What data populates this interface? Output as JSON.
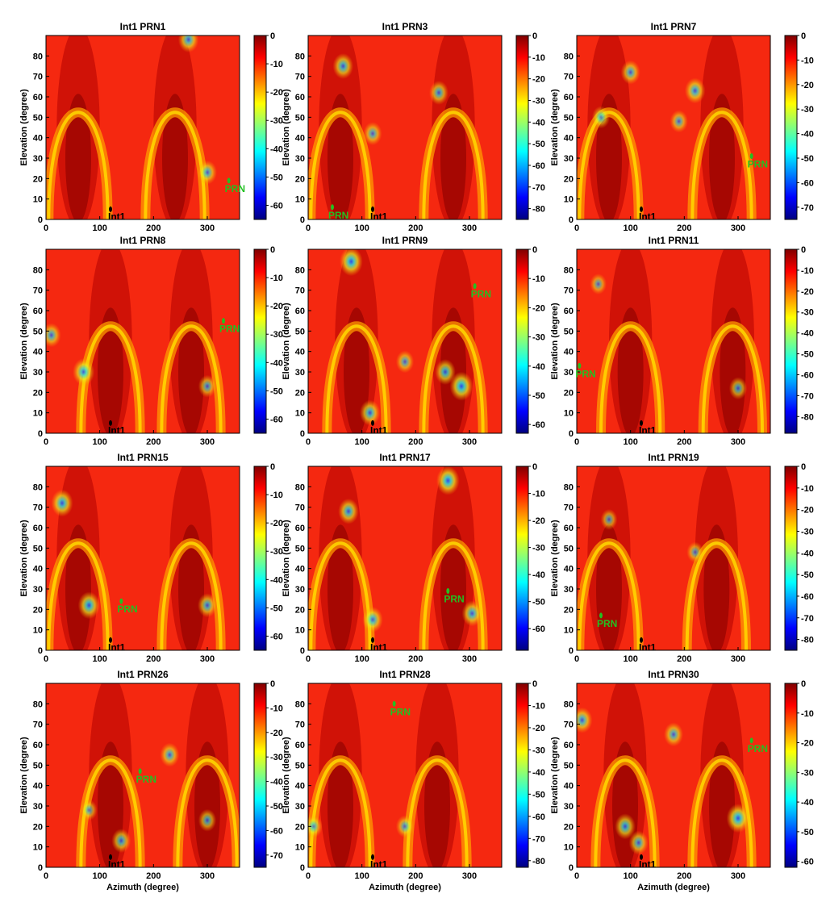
{
  "chart_data": [
    {
      "type": "heatmap",
      "title_left": "Int1",
      "title_right": "PRN1",
      "xlim": [
        0,
        360
      ],
      "ylim": [
        0,
        90
      ],
      "xticks": [
        0,
        100,
        200,
        300
      ],
      "yticks": [
        0,
        10,
        20,
        30,
        40,
        50,
        60,
        70,
        80
      ],
      "colorbar": {
        "min": -65,
        "max": 0,
        "ticks": [
          0,
          -10,
          -20,
          -30,
          -40,
          -50,
          -60
        ]
      },
      "arch_centers": [
        60,
        240
      ],
      "nulls": [
        {
          "x": 300,
          "y": 23,
          "depth": 0.5
        },
        {
          "x": 265,
          "y": 88,
          "depth": 0.6
        }
      ],
      "int_marker": {
        "label": "Int1",
        "x": 120,
        "y": 5
      },
      "prn_marker": {
        "label": "PRN",
        "x": 340,
        "y": 19
      }
    },
    {
      "type": "heatmap",
      "title_left": "Int1",
      "title_right": "PRN3",
      "xlim": [
        0,
        360
      ],
      "ylim": [
        0,
        90
      ],
      "xticks": [
        0,
        100,
        200,
        300
      ],
      "yticks": [
        0,
        10,
        20,
        30,
        40,
        50,
        60,
        70,
        80
      ],
      "colorbar": {
        "min": -85,
        "max": 0,
        "ticks": [
          0,
          -10,
          -20,
          -30,
          -40,
          -50,
          -60,
          -70,
          -80
        ]
      },
      "arch_centers": [
        60,
        270
      ],
      "nulls": [
        {
          "x": 65,
          "y": 75,
          "depth": 0.6
        },
        {
          "x": 120,
          "y": 42,
          "depth": 0.45
        },
        {
          "x": 243,
          "y": 62,
          "depth": 0.5
        }
      ],
      "int_marker": {
        "label": "Int1",
        "x": 120,
        "y": 5
      },
      "prn_marker": {
        "label": "PRN",
        "x": 45,
        "y": 6
      }
    },
    {
      "type": "heatmap",
      "title_left": "Int1",
      "title_right": "PRN7",
      "xlim": [
        0,
        360
      ],
      "ylim": [
        0,
        90
      ],
      "xticks": [
        0,
        100,
        200,
        300
      ],
      "yticks": [
        0,
        10,
        20,
        30,
        40,
        50,
        60,
        70,
        80
      ],
      "colorbar": {
        "min": -75,
        "max": 0,
        "ticks": [
          0,
          -10,
          -20,
          -30,
          -40,
          -50,
          -60,
          -70
        ]
      },
      "arch_centers": [
        60,
        270
      ],
      "nulls": [
        {
          "x": 100,
          "y": 72,
          "depth": 0.5
        },
        {
          "x": 220,
          "y": 63,
          "depth": 0.6
        },
        {
          "x": 45,
          "y": 50,
          "depth": 0.4
        },
        {
          "x": 190,
          "y": 48,
          "depth": 0.4
        }
      ],
      "int_marker": {
        "label": "Int1",
        "x": 120,
        "y": 5
      },
      "prn_marker": {
        "label": "PRN",
        "x": 325,
        "y": 31
      }
    },
    {
      "type": "heatmap",
      "title_left": "Int1",
      "title_right": "PRN8",
      "xlim": [
        0,
        360
      ],
      "ylim": [
        0,
        90
      ],
      "xticks": [
        0,
        100,
        200,
        300
      ],
      "yticks": [
        0,
        10,
        20,
        30,
        40,
        50,
        60,
        70,
        80
      ],
      "colorbar": {
        "min": -65,
        "max": 0,
        "ticks": [
          0,
          -10,
          -20,
          -30,
          -40,
          -50,
          -60
        ]
      },
      "arch_centers": [
        120,
        270
      ],
      "nulls": [
        {
          "x": 10,
          "y": 48,
          "depth": 0.5
        },
        {
          "x": 70,
          "y": 30,
          "depth": 0.7
        },
        {
          "x": 300,
          "y": 23,
          "depth": 0.4
        }
      ],
      "int_marker": {
        "label": "Int1",
        "x": 120,
        "y": 5
      },
      "prn_marker": {
        "label": "PRN",
        "x": 330,
        "y": 55
      }
    },
    {
      "type": "heatmap",
      "title_left": "Int1",
      "title_right": "PRN9",
      "xlim": [
        0,
        360
      ],
      "ylim": [
        0,
        90
      ],
      "xticks": [
        0,
        100,
        200,
        300
      ],
      "yticks": [
        0,
        10,
        20,
        30,
        40,
        50,
        60,
        70,
        80
      ],
      "colorbar": {
        "min": -63,
        "max": 0,
        "ticks": [
          0,
          -10,
          -20,
          -30,
          -40,
          -50,
          -60
        ]
      },
      "arch_centers": [
        90,
        270
      ],
      "nulls": [
        {
          "x": 80,
          "y": 84,
          "depth": 0.8
        },
        {
          "x": 115,
          "y": 10,
          "depth": 0.6
        },
        {
          "x": 255,
          "y": 30,
          "depth": 0.6
        },
        {
          "x": 285,
          "y": 23,
          "depth": 0.8
        },
        {
          "x": 180,
          "y": 35,
          "depth": 0.4
        }
      ],
      "int_marker": {
        "label": "Int1",
        "x": 120,
        "y": 5
      },
      "prn_marker": {
        "label": "PRN",
        "x": 310,
        "y": 72
      }
    },
    {
      "type": "heatmap",
      "title_left": "Int1",
      "title_right": "PRN11",
      "xlim": [
        0,
        360
      ],
      "ylim": [
        0,
        90
      ],
      "xticks": [
        0,
        100,
        200,
        300
      ],
      "yticks": [
        0,
        10,
        20,
        30,
        40,
        50,
        60,
        70,
        80
      ],
      "colorbar": {
        "min": -88,
        "max": 0,
        "ticks": [
          0,
          -10,
          -20,
          -30,
          -40,
          -50,
          -60,
          -70,
          -80
        ]
      },
      "arch_centers": [
        100,
        290
      ],
      "nulls": [
        {
          "x": 300,
          "y": 22,
          "depth": 0.4
        },
        {
          "x": 40,
          "y": 73,
          "depth": 0.3
        }
      ],
      "int_marker": {
        "label": "Int1",
        "x": 120,
        "y": 5
      },
      "prn_marker": {
        "label": "PRN",
        "x": 5,
        "y": 33
      }
    },
    {
      "type": "heatmap",
      "title_left": "Int1",
      "title_right": "PRN15",
      "xlim": [
        0,
        360
      ],
      "ylim": [
        0,
        90
      ],
      "xticks": [
        0,
        100,
        200,
        300
      ],
      "yticks": [
        0,
        10,
        20,
        30,
        40,
        50,
        60,
        70,
        80
      ],
      "colorbar": {
        "min": -65,
        "max": 0,
        "ticks": [
          0,
          -10,
          -20,
          -30,
          -40,
          -50,
          -60
        ]
      },
      "arch_centers": [
        60,
        270
      ],
      "nulls": [
        {
          "x": 30,
          "y": 72,
          "depth": 0.7
        },
        {
          "x": 80,
          "y": 22,
          "depth": 0.7
        },
        {
          "x": 300,
          "y": 22,
          "depth": 0.5
        }
      ],
      "int_marker": {
        "label": "Int1",
        "x": 120,
        "y": 5
      },
      "prn_marker": {
        "label": "PRN",
        "x": 140,
        "y": 24
      }
    },
    {
      "type": "heatmap",
      "title_left": "Int1",
      "title_right": "PRN17",
      "xlim": [
        0,
        360
      ],
      "ylim": [
        0,
        90
      ],
      "xticks": [
        0,
        100,
        200,
        300
      ],
      "yticks": [
        0,
        10,
        20,
        30,
        40,
        50,
        60,
        70,
        80
      ],
      "colorbar": {
        "min": -68,
        "max": 0,
        "ticks": [
          0,
          -10,
          -20,
          -30,
          -40,
          -50,
          -60
        ]
      },
      "arch_centers": [
        60,
        270
      ],
      "nulls": [
        {
          "x": 260,
          "y": 83,
          "depth": 0.8
        },
        {
          "x": 75,
          "y": 68,
          "depth": 0.6
        },
        {
          "x": 120,
          "y": 15,
          "depth": 0.6
        },
        {
          "x": 305,
          "y": 18,
          "depth": 0.6
        }
      ],
      "int_marker": {
        "label": "Int1",
        "x": 120,
        "y": 5
      },
      "prn_marker": {
        "label": "PRN",
        "x": 260,
        "y": 29
      }
    },
    {
      "type": "heatmap",
      "title_left": "Int1",
      "title_right": "PRN19",
      "xlim": [
        0,
        360
      ],
      "ylim": [
        0,
        90
      ],
      "xticks": [
        0,
        100,
        200,
        300
      ],
      "yticks": [
        0,
        10,
        20,
        30,
        40,
        50,
        60,
        70,
        80
      ],
      "colorbar": {
        "min": -85,
        "max": 0,
        "ticks": [
          0,
          -10,
          -20,
          -30,
          -40,
          -50,
          -60,
          -70,
          -80
        ]
      },
      "arch_centers": [
        60,
        260
      ],
      "nulls": [
        {
          "x": 60,
          "y": 64,
          "depth": 0.3
        },
        {
          "x": 220,
          "y": 48,
          "depth": 0.3
        }
      ],
      "int_marker": {
        "label": "Int1",
        "x": 120,
        "y": 5
      },
      "prn_marker": {
        "label": "PRN",
        "x": 45,
        "y": 17
      }
    },
    {
      "type": "heatmap",
      "title_left": "Int1",
      "title_right": "PRN26",
      "xlim": [
        0,
        360
      ],
      "ylim": [
        0,
        90
      ],
      "xticks": [
        0,
        100,
        200,
        300
      ],
      "yticks": [
        0,
        10,
        20,
        30,
        40,
        50,
        60,
        70,
        80
      ],
      "colorbar": {
        "min": -75,
        "max": 0,
        "ticks": [
          0,
          -10,
          -20,
          -30,
          -40,
          -50,
          -60,
          -70
        ]
      },
      "arch_centers": [
        120,
        300
      ],
      "nulls": [
        {
          "x": 230,
          "y": 55,
          "depth": 0.5
        },
        {
          "x": 300,
          "y": 23,
          "depth": 0.4
        },
        {
          "x": 140,
          "y": 13,
          "depth": 0.5
        },
        {
          "x": 80,
          "y": 28,
          "depth": 0.3
        }
      ],
      "int_marker": {
        "label": "Int1",
        "x": 120,
        "y": 5
      },
      "prn_marker": {
        "label": "PRN",
        "x": 175,
        "y": 47
      }
    },
    {
      "type": "heatmap",
      "title_left": "Int1",
      "title_right": "PRN28",
      "xlim": [
        0,
        360
      ],
      "ylim": [
        0,
        90
      ],
      "xticks": [
        0,
        100,
        200,
        300
      ],
      "yticks": [
        0,
        10,
        20,
        30,
        40,
        50,
        60,
        70,
        80
      ],
      "colorbar": {
        "min": -83,
        "max": 0,
        "ticks": [
          0,
          -10,
          -20,
          -30,
          -40,
          -50,
          -60,
          -70,
          -80
        ]
      },
      "arch_centers": [
        60,
        240
      ],
      "nulls": [
        {
          "x": 10,
          "y": 20,
          "depth": 0.4
        },
        {
          "x": 180,
          "y": 20,
          "depth": 0.4
        }
      ],
      "int_marker": {
        "label": "Int1",
        "x": 120,
        "y": 5
      },
      "prn_marker": {
        "label": "PRN",
        "x": 160,
        "y": 80
      }
    },
    {
      "type": "heatmap",
      "title_left": "Int1",
      "title_right": "PRN30",
      "xlim": [
        0,
        360
      ],
      "ylim": [
        0,
        90
      ],
      "xticks": [
        0,
        100,
        200,
        300
      ],
      "yticks": [
        0,
        10,
        20,
        30,
        40,
        50,
        60,
        70,
        80
      ],
      "colorbar": {
        "min": -62,
        "max": 0,
        "ticks": [
          0,
          -10,
          -20,
          -30,
          -40,
          -50,
          -60
        ]
      },
      "arch_centers": [
        90,
        270
      ],
      "nulls": [
        {
          "x": 10,
          "y": 72,
          "depth": 0.6
        },
        {
          "x": 180,
          "y": 65,
          "depth": 0.5
        },
        {
          "x": 90,
          "y": 20,
          "depth": 0.6
        },
        {
          "x": 300,
          "y": 24,
          "depth": 0.8
        },
        {
          "x": 115,
          "y": 12,
          "depth": 0.5
        }
      ],
      "int_marker": {
        "label": "Int1",
        "x": 120,
        "y": 5
      },
      "prn_marker": {
        "label": "PRN",
        "x": 325,
        "y": 62
      }
    }
  ],
  "axes": {
    "ylabel": "Elevation (degree)",
    "xlabel": "Azimuth (degree)"
  }
}
